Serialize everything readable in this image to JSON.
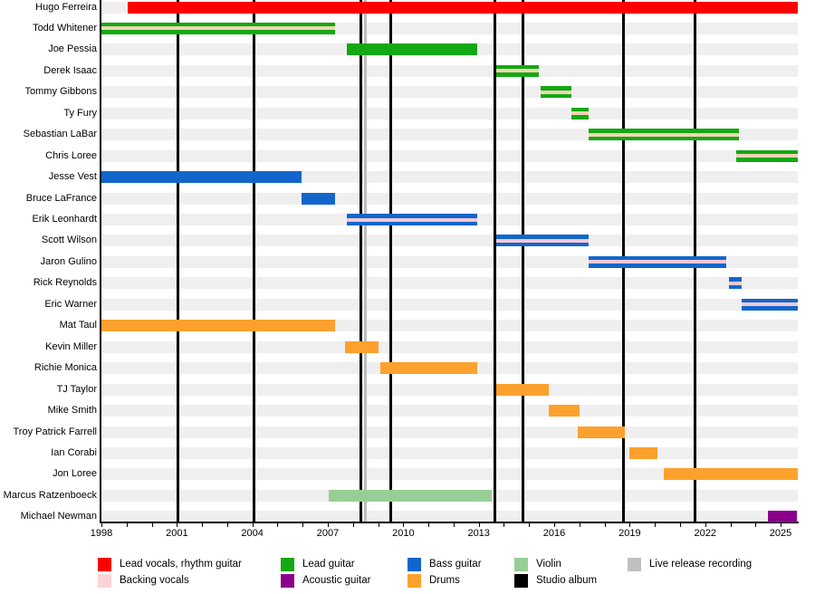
{
  "chart_data": {
    "type": "timeline",
    "title": "",
    "x_axis": {
      "unit": "year",
      "start": 1998,
      "end": 2025.68,
      "tick_labels": [
        "1998",
        "2001",
        "2004",
        "2007",
        "2010",
        "2013",
        "2016",
        "2019",
        "2022",
        "2025"
      ],
      "label_step_years": 3,
      "minor_tick_every_years": 1
    },
    "members": [
      {
        "name": "Hugo Ferreira",
        "role": "Lead vocals, rhythm guitar",
        "color": "red",
        "start": 1999.05,
        "end": 2025.68,
        "backing_vocals": false
      },
      {
        "name": "Todd Whitener",
        "role": "Lead guitar",
        "color": "green",
        "start": 1998.0,
        "end": 2007.3,
        "backing_vocals": true
      },
      {
        "name": "Joe Pessia",
        "role": "Lead guitar",
        "color": "green",
        "start": 2007.75,
        "end": 2012.95,
        "backing_vocals": false
      },
      {
        "name": "Derek Isaac",
        "role": "Lead guitar",
        "color": "green",
        "start": 2013.7,
        "end": 2015.4,
        "backing_vocals": true
      },
      {
        "name": "Tommy Gibbons",
        "role": "Lead guitar",
        "color": "green",
        "start": 2015.45,
        "end": 2016.7,
        "backing_vocals": true
      },
      {
        "name": "Ty Fury",
        "role": "Lead guitar",
        "color": "green",
        "start": 2016.7,
        "end": 2017.35,
        "backing_vocals": true
      },
      {
        "name": "Sebastian LaBar",
        "role": "Lead guitar",
        "color": "green",
        "start": 2017.35,
        "end": 2023.35,
        "backing_vocals": true
      },
      {
        "name": "Chris Loree",
        "role": "Lead guitar",
        "color": "green",
        "start": 2023.25,
        "end": 2025.68,
        "backing_vocals": true
      },
      {
        "name": "Jesse Vest",
        "role": "Bass guitar",
        "color": "blue",
        "start": 1998.0,
        "end": 2005.95,
        "backing_vocals": false
      },
      {
        "name": "Bruce LaFrance",
        "role": "Bass guitar",
        "color": "blue",
        "start": 2005.95,
        "end": 2007.3,
        "backing_vocals": false
      },
      {
        "name": "Erik Leonhardt",
        "role": "Bass guitar",
        "color": "blue",
        "start": 2007.75,
        "end": 2012.95,
        "backing_vocals": true
      },
      {
        "name": "Scott Wilson",
        "role": "Bass guitar",
        "color": "blue",
        "start": 2013.7,
        "end": 2017.35,
        "backing_vocals": true
      },
      {
        "name": "Jaron Gulino",
        "role": "Bass guitar",
        "color": "blue",
        "start": 2017.35,
        "end": 2022.85,
        "backing_vocals": true
      },
      {
        "name": "Rick Reynolds",
        "role": "Bass guitar",
        "color": "blue",
        "start": 2022.95,
        "end": 2023.45,
        "backing_vocals": true
      },
      {
        "name": "Eric Warner",
        "role": "Bass guitar",
        "color": "blue",
        "start": 2023.45,
        "end": 2025.68,
        "backing_vocals": true
      },
      {
        "name": "Mat Taul",
        "role": "Drums",
        "color": "orange",
        "start": 1998.0,
        "end": 2007.3,
        "backing_vocals": false
      },
      {
        "name": "Kevin Miller",
        "role": "Drums",
        "color": "orange",
        "start": 2007.7,
        "end": 2009.0,
        "backing_vocals": false
      },
      {
        "name": "Richie Monica",
        "role": "Drums",
        "color": "orange",
        "start": 2009.1,
        "end": 2012.95,
        "backing_vocals": false
      },
      {
        "name": "TJ Taylor",
        "role": "Drums",
        "color": "orange",
        "start": 2013.7,
        "end": 2015.8,
        "backing_vocals": false
      },
      {
        "name": "Mike Smith",
        "role": "Drums",
        "color": "orange",
        "start": 2015.8,
        "end": 2017.0,
        "backing_vocals": false
      },
      {
        "name": "Troy Patrick Farrell",
        "role": "Drums",
        "color": "orange",
        "start": 2016.95,
        "end": 2018.8,
        "backing_vocals": false
      },
      {
        "name": "Ian Corabi",
        "role": "Drums",
        "color": "orange",
        "start": 2019.0,
        "end": 2020.1,
        "backing_vocals": false
      },
      {
        "name": "Jon Loree",
        "role": "Drums",
        "color": "orange",
        "start": 2020.35,
        "end": 2025.68,
        "backing_vocals": false
      },
      {
        "name": "Marcus Ratzenboeck",
        "role": "Violin",
        "color": "violin",
        "start": 2007.05,
        "end": 2013.5,
        "backing_vocals": false
      },
      {
        "name": "Michael Newman",
        "role": "Acoustic guitar",
        "color": "purple",
        "start": 2024.5,
        "end": 2025.65,
        "backing_vocals": false
      }
    ],
    "studio_albums": [
      2001.05,
      2004.05,
      2008.3,
      2009.5,
      2013.65,
      2014.75,
      2018.75,
      2021.6
    ],
    "live_releases": [
      2008.5
    ],
    "legend": {
      "columns": [
        [
          {
            "label": "Lead vocals, rhythm guitar",
            "color": "red"
          },
          {
            "label": "Backing vocals",
            "color": "pink"
          }
        ],
        [
          {
            "label": "Lead guitar",
            "color": "green"
          },
          {
            "label": "Acoustic guitar",
            "color": "purple"
          }
        ],
        [
          {
            "label": "Bass guitar",
            "color": "blue"
          },
          {
            "label": "Drums",
            "color": "orange"
          }
        ],
        [
          {
            "label": "Violin",
            "color": "violin"
          },
          {
            "label": "Studio album",
            "color": "black"
          }
        ],
        [
          {
            "label": "Live release recording",
            "color": "gray"
          }
        ]
      ]
    },
    "colors": {
      "red": "#FE0000",
      "green": "#14A814",
      "blue": "#1266CB",
      "orange": "#FCA12D",
      "violin": "#97CE97",
      "purple": "#8B008B",
      "pink": "#F9D3D7",
      "black": "#000000",
      "gray": "#C0C0C0",
      "live_line": "#BDBDBD",
      "album_line": "#000000",
      "row_band": "#EFEFEF",
      "backing_stripe_on_green": "#F0D5B2",
      "backing_stripe_on_blue": "#F5C9D4"
    }
  }
}
